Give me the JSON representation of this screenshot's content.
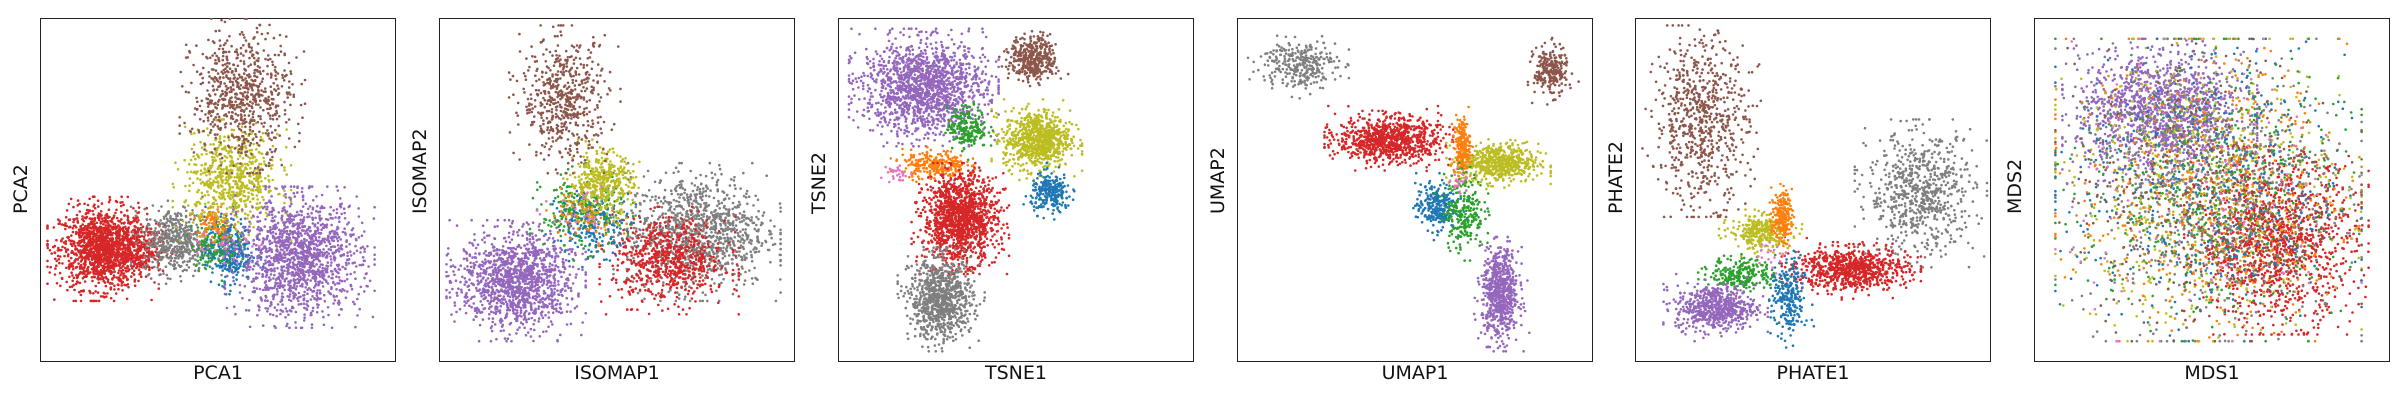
{
  "chart_data": [
    {
      "type": "scatter",
      "xlabel": "PCA1",
      "ylabel": "PCA2",
      "xlim": [
        0,
        100
      ],
      "ylim": [
        0,
        100
      ],
      "series": [
        {
          "color": "#d62728",
          "clusters": [
            {
              "x": [
                4,
                30
              ],
              "y": [
                20,
                45
              ],
              "n": 1400
            },
            {
              "x": [
                20,
                35
              ],
              "y": [
                25,
                40
              ],
              "n": 200
            }
          ]
        },
        {
          "color": "#7f7f7f",
          "clusters": [
            {
              "x": [
                28,
                48
              ],
              "y": [
                25,
                45
              ],
              "n": 500
            }
          ]
        },
        {
          "color": "#1f77b4",
          "clusters": [
            {
              "x": [
                46,
                60
              ],
              "y": [
                22,
                42
              ],
              "n": 350
            }
          ]
        },
        {
          "color": "#2ca02c",
          "clusters": [
            {
              "x": [
                42,
                56
              ],
              "y": [
                26,
                42
              ],
              "n": 120
            }
          ]
        },
        {
          "color": "#ff7f0e",
          "clusters": [
            {
              "x": [
                44,
                54
              ],
              "y": [
                34,
                46
              ],
              "n": 100
            }
          ]
        },
        {
          "color": "#bcbd22",
          "clusters": [
            {
              "x": [
                40,
                68
              ],
              "y": [
                38,
                68
              ],
              "n": 650
            }
          ]
        },
        {
          "color": "#8c564b",
          "clusters": [
            {
              "x": [
                42,
                72
              ],
              "y": [
                58,
                98
              ],
              "n": 700
            }
          ]
        },
        {
          "color": "#9467bd",
          "clusters": [
            {
              "x": [
                55,
                92
              ],
              "y": [
                12,
                48
              ],
              "n": 1400
            }
          ]
        },
        {
          "color": "#e377c2",
          "clusters": [
            {
              "x": [
                40,
                60
              ],
              "y": [
                28,
                40
              ],
              "n": 30
            }
          ]
        }
      ]
    },
    {
      "type": "scatter",
      "xlabel": "ISOMAP1",
      "ylabel": "ISOMAP2",
      "xlim": [
        0,
        100
      ],
      "ylim": [
        0,
        100
      ],
      "series": [
        {
          "color": "#9467bd",
          "clusters": [
            {
              "x": [
                4,
                38
              ],
              "y": [
                8,
                38
              ],
              "n": 1300
            }
          ]
        },
        {
          "color": "#7f7f7f",
          "clusters": [
            {
              "x": [
                52,
                94
              ],
              "y": [
                20,
                55
              ],
              "n": 1100
            }
          ]
        },
        {
          "color": "#d62728",
          "clusters": [
            {
              "x": [
                48,
                82
              ],
              "y": [
                16,
                42
              ],
              "n": 700
            }
          ]
        },
        {
          "color": "#2ca02c",
          "clusters": [
            {
              "x": [
                28,
                52
              ],
              "y": [
                32,
                55
              ],
              "n": 250
            }
          ]
        },
        {
          "color": "#1f77b4",
          "clusters": [
            {
              "x": [
                32,
                55
              ],
              "y": [
                30,
                50
              ],
              "n": 200
            }
          ]
        },
        {
          "color": "#ff7f0e",
          "clusters": [
            {
              "x": [
                30,
                52
              ],
              "y": [
                35,
                52
              ],
              "n": 80
            }
          ]
        },
        {
          "color": "#bcbd22",
          "clusters": [
            {
              "x": [
                36,
                55
              ],
              "y": [
                42,
                62
              ],
              "n": 400
            }
          ]
        },
        {
          "color": "#8c564b",
          "clusters": [
            {
              "x": [
                22,
                48
              ],
              "y": [
                58,
                96
              ],
              "n": 550
            }
          ]
        },
        {
          "color": "#e377c2",
          "clusters": [
            {
              "x": [
                30,
                50
              ],
              "y": [
                35,
                48
              ],
              "n": 25
            }
          ]
        }
      ]
    },
    {
      "type": "scatter",
      "xlabel": "TSNE1",
      "ylabel": "TSNE2",
      "xlim": [
        0,
        100
      ],
      "ylim": [
        0,
        100
      ],
      "series": [
        {
          "color": "#9467bd",
          "clusters": [
            {
              "x": [
                5,
                42
              ],
              "y": [
                66,
                95
              ],
              "n": 1500
            }
          ]
        },
        {
          "color": "#8c564b",
          "clusters": [
            {
              "x": [
                48,
                62
              ],
              "y": [
                82,
                96
              ],
              "n": 400
            }
          ]
        },
        {
          "color": "#bcbd22",
          "clusters": [
            {
              "x": [
                46,
                66
              ],
              "y": [
                56,
                74
              ],
              "n": 800
            }
          ]
        },
        {
          "color": "#2ca02c",
          "clusters": [
            {
              "x": [
                30,
                42
              ],
              "y": [
                62,
                75
              ],
              "n": 200
            }
          ]
        },
        {
          "color": "#ff7f0e",
          "clusters": [
            {
              "x": [
                17,
                36
              ],
              "y": [
                53,
                62
              ],
              "n": 250
            }
          ]
        },
        {
          "color": "#1f77b4",
          "clusters": [
            {
              "x": [
                54,
                66
              ],
              "y": [
                43,
                55
              ],
              "n": 250
            }
          ]
        },
        {
          "color": "#d62728",
          "clusters": [
            {
              "x": [
                23,
                45
              ],
              "y": [
                28,
                55
              ],
              "n": 1400
            }
          ]
        },
        {
          "color": "#7f7f7f",
          "clusters": [
            {
              "x": [
                19,
                38
              ],
              "y": [
                5,
                30
              ],
              "n": 900
            }
          ]
        },
        {
          "color": "#e377c2",
          "clusters": [
            {
              "x": [
                13,
                20
              ],
              "y": [
                52,
                58
              ],
              "n": 30
            }
          ]
        }
      ]
    },
    {
      "type": "scatter",
      "xlabel": "UMAP1",
      "ylabel": "UMAP2",
      "xlim": [
        0,
        100
      ],
      "ylim": [
        0,
        100
      ],
      "series": [
        {
          "color": "#7f7f7f",
          "clusters": [
            {
              "x": [
                5,
                28
              ],
              "y": [
                80,
                95
              ],
              "n": 300
            }
          ]
        },
        {
          "color": "#d62728",
          "clusters": [
            {
              "x": [
                27,
                58
              ],
              "y": [
                58,
                72
              ],
              "n": 900
            }
          ]
        },
        {
          "color": "#bcbd22",
          "clusters": [
            {
              "x": [
                62,
                86
              ],
              "y": [
                52,
                64
              ],
              "n": 600
            }
          ]
        },
        {
          "color": "#ff7f0e",
          "clusters": [
            {
              "x": [
                61,
                66
              ],
              "y": [
                54,
                72
              ],
              "n": 200
            }
          ]
        },
        {
          "color": "#1f77b4",
          "clusters": [
            {
              "x": [
                50,
                62
              ],
              "y": [
                38,
                52
              ],
              "n": 250
            }
          ]
        },
        {
          "color": "#2ca02c",
          "clusters": [
            {
              "x": [
                58,
                70
              ],
              "y": [
                32,
                56
              ],
              "n": 250
            }
          ]
        },
        {
          "color": "#9467bd",
          "clusters": [
            {
              "x": [
                69,
                80
              ],
              "y": [
                5,
                33
              ],
              "n": 700
            }
          ]
        },
        {
          "color": "#8c564b",
          "clusters": [
            {
              "x": [
                84,
                94
              ],
              "y": [
                78,
                93
              ],
              "n": 250
            }
          ]
        },
        {
          "color": "#e377c2",
          "clusters": [
            {
              "x": [
                60,
                66
              ],
              "y": [
                48,
                56
              ],
              "n": 20
            }
          ]
        }
      ]
    },
    {
      "type": "scatter",
      "xlabel": "PHATE1",
      "ylabel": "PHATE2",
      "xlim": [
        0,
        100
      ],
      "ylim": [
        0,
        100
      ],
      "series": [
        {
          "color": "#8c564b",
          "clusters": [
            {
              "x": [
                4,
                32
              ],
              "y": [
                45,
                96
              ],
              "n": 700
            }
          ]
        },
        {
          "color": "#7f7f7f",
          "clusters": [
            {
              "x": [
                65,
                97
              ],
              "y": [
                30,
                68
              ],
              "n": 700
            }
          ]
        },
        {
          "color": "#d62728",
          "clusters": [
            {
              "x": [
                44,
                78
              ],
              "y": [
                20,
                33
              ],
              "n": 800
            }
          ]
        },
        {
          "color": "#bcbd22",
          "clusters": [
            {
              "x": [
                26,
                44
              ],
              "y": [
                32,
                43
              ],
              "n": 300
            }
          ]
        },
        {
          "color": "#ff7f0e",
          "clusters": [
            {
              "x": [
                38,
                44
              ],
              "y": [
                34,
                50
              ],
              "n": 200
            }
          ]
        },
        {
          "color": "#2ca02c",
          "clusters": [
            {
              "x": [
                20,
                40
              ],
              "y": [
                20,
                30
              ],
              "n": 250
            }
          ]
        },
        {
          "color": "#1f77b4",
          "clusters": [
            {
              "x": [
                38,
                48
              ],
              "y": [
                5,
                30
              ],
              "n": 250
            }
          ]
        },
        {
          "color": "#9467bd",
          "clusters": [
            {
              "x": [
                10,
                34
              ],
              "y": [
                8,
                22
              ],
              "n": 600
            }
          ]
        },
        {
          "color": "#e377c2",
          "clusters": [
            {
              "x": [
                34,
                44
              ],
              "y": [
                26,
                34
              ],
              "n": 20
            }
          ]
        }
      ]
    },
    {
      "type": "scatter",
      "xlabel": "MDS1",
      "ylabel": "MDS2",
      "xlim": [
        0,
        100
      ],
      "ylim": [
        0,
        100
      ],
      "series": [
        {
          "color": "#9467bd",
          "clusters": [
            {
              "x": [
                10,
                60
              ],
              "y": [
                55,
                92
              ],
              "n": 1300
            }
          ]
        },
        {
          "color": "#d62728",
          "clusters": [
            {
              "x": [
                45,
                92
              ],
              "y": [
                10,
                60
              ],
              "n": 1300
            }
          ]
        },
        {
          "color": "#bcbd22",
          "clusters": [
            {
              "x": [
                8,
                90
              ],
              "y": [
                8,
                92
              ],
              "n": 700
            }
          ]
        },
        {
          "color": "#2ca02c",
          "clusters": [
            {
              "x": [
                8,
                90
              ],
              "y": [
                8,
                92
              ],
              "n": 500
            }
          ]
        },
        {
          "color": "#ff7f0e",
          "clusters": [
            {
              "x": [
                8,
                90
              ],
              "y": [
                8,
                92
              ],
              "n": 500
            }
          ]
        },
        {
          "color": "#1f77b4",
          "clusters": [
            {
              "x": [
                8,
                90
              ],
              "y": [
                8,
                92
              ],
              "n": 500
            }
          ]
        },
        {
          "color": "#7f7f7f",
          "clusters": [
            {
              "x": [
                8,
                90
              ],
              "y": [
                8,
                92
              ],
              "n": 600
            }
          ]
        },
        {
          "color": "#8c564b",
          "clusters": [
            {
              "x": [
                8,
                90
              ],
              "y": [
                8,
                92
              ],
              "n": 400
            }
          ]
        },
        {
          "color": "#e377c2",
          "clusters": [
            {
              "x": [
                8,
                90
              ],
              "y": [
                8,
                92
              ],
              "n": 150
            }
          ]
        }
      ]
    }
  ]
}
